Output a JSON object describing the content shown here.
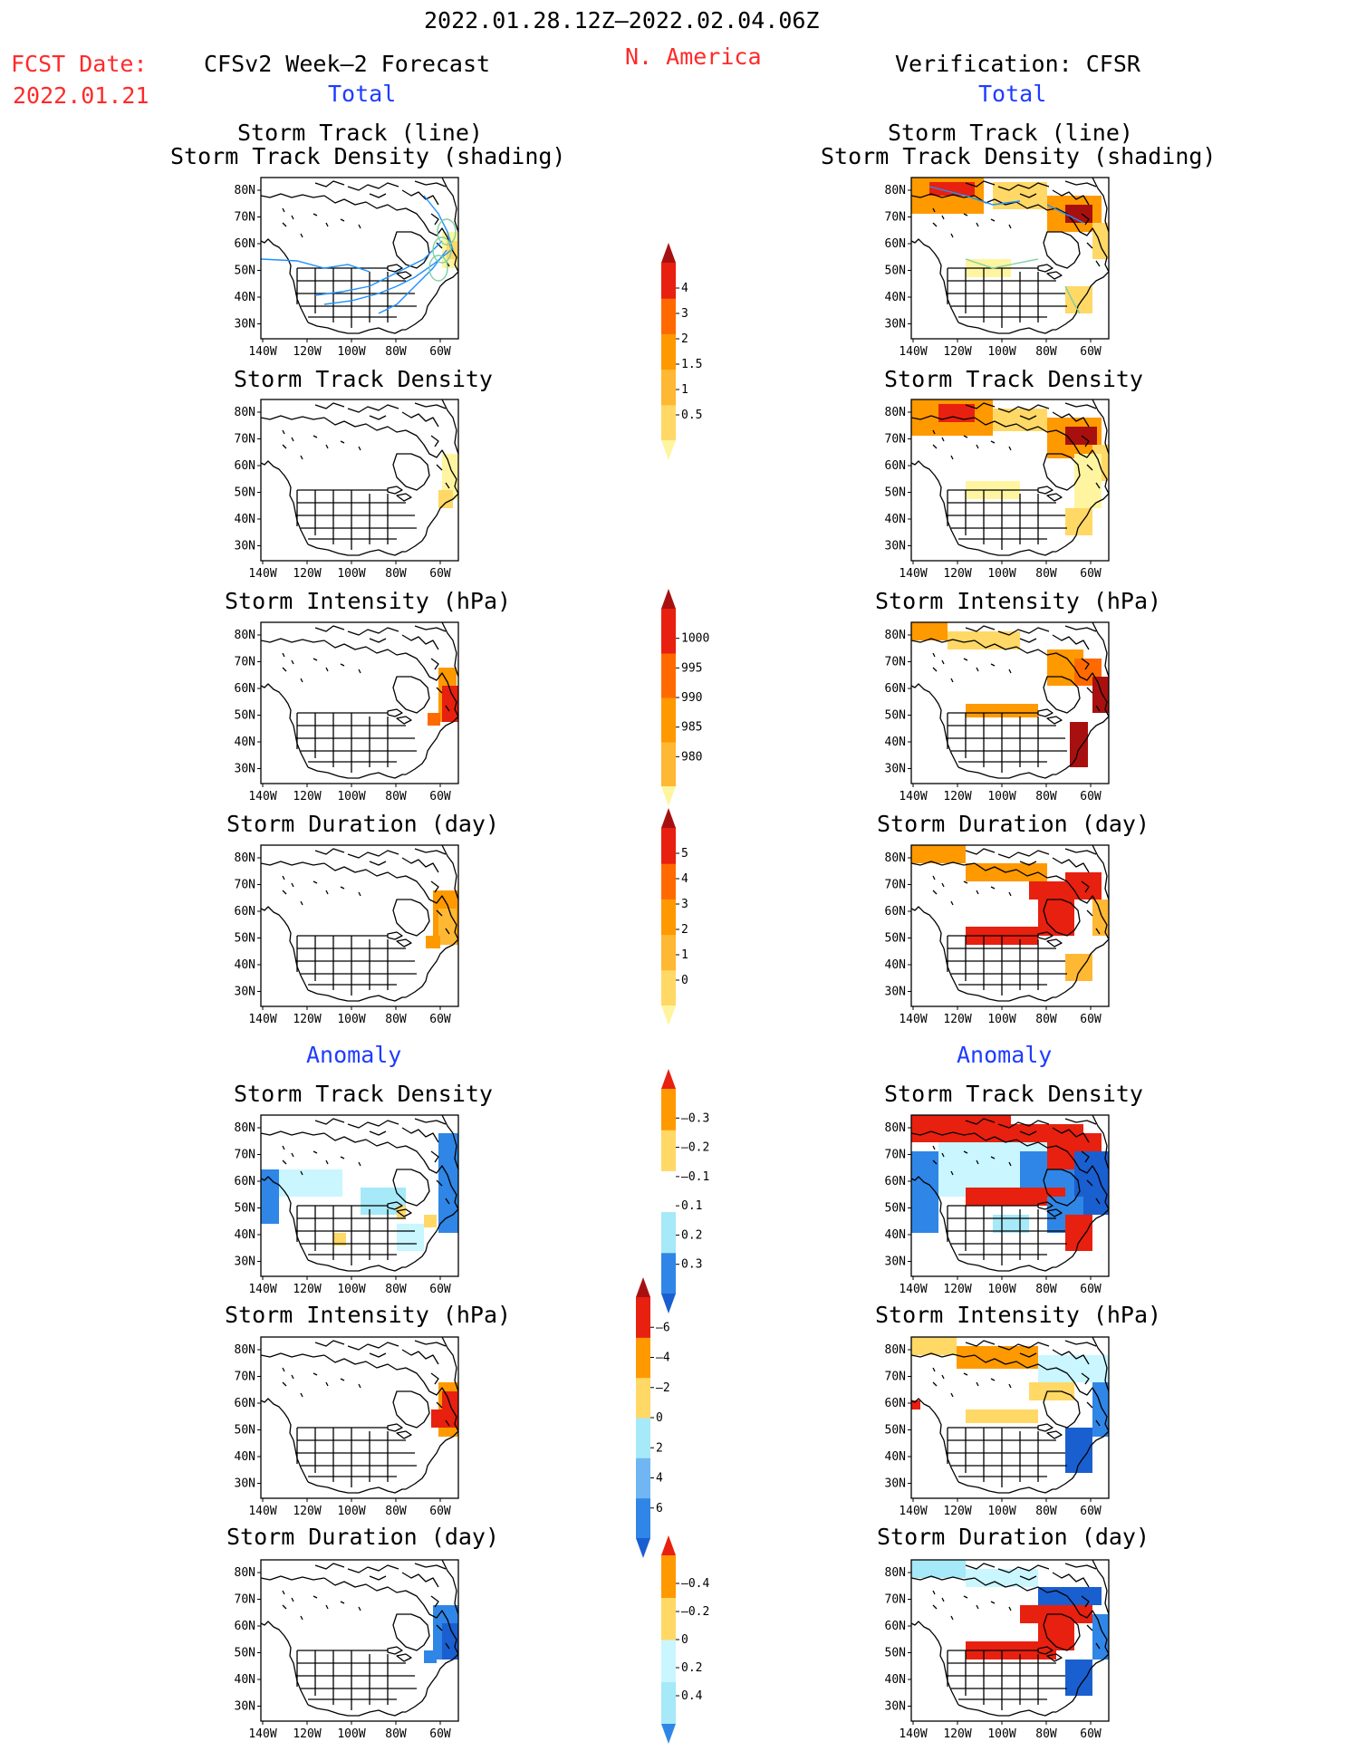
{
  "header": {
    "period": "2022.01.28.12Z–2022.02.04.06Z",
    "region": "N. America",
    "fcst_label": "FCST Date:",
    "fcst_date": "2022.01.21",
    "left_title": "CFSv2 Week–2 Forecast",
    "right_title": "Verification: CFSR",
    "total": "Total",
    "anomaly": "Anomaly"
  },
  "panel_titles": {
    "storm_track_line": "Storm Track (line)",
    "storm_track_density_shading": "Storm Track Density (shading)",
    "storm_track_density": "Storm Track Density",
    "storm_intensity": "Storm Intensity (hPa)",
    "storm_duration": "Storm Duration (day)"
  },
  "axes": {
    "lat_labels": [
      "80N",
      "70N",
      "60N",
      "50N",
      "40N",
      "30N"
    ],
    "lon_labels": [
      "140W",
      "120W",
      "100W",
      "80W",
      "60W"
    ]
  },
  "colors": {
    "title_red": "#ff2a2a",
    "title_blue": "#1f3cff",
    "track_blue": "#1e90ff",
    "track_green": "#7fd0a0",
    "yellow_light": "#fff5a0",
    "yellow": "#ffd866",
    "orange_light": "#ffb833",
    "orange": "#ff9900",
    "orange_dark": "#ff6a00",
    "red": "#e8200f",
    "dark_red": "#a81010",
    "cyan_light": "#c9f6ff",
    "cyan": "#a6e9f8",
    "blue_light": "#6fb6f2",
    "blue": "#2f86e6",
    "blue_dark": "#1a5fd0"
  },
  "colorbars": {
    "density_total": [
      "0.5",
      "1",
      "1.5",
      "2",
      "3",
      "4"
    ],
    "intensity_total": [
      "1000",
      "995",
      "990",
      "985",
      "980"
    ],
    "duration_total": [
      "0",
      "1",
      "2",
      "3",
      "4",
      "5"
    ],
    "density_anom": [
      "0.3",
      "0.2",
      "0.1",
      "–0.1",
      "–0.2",
      "–0.3"
    ],
    "intensity_anom": [
      "6",
      "4",
      "2",
      "0",
      "–2",
      "–4",
      "–6"
    ],
    "duration_anom": [
      "0.4",
      "0.2",
      "0",
      "–0.2",
      "–0.4"
    ]
  }
}
